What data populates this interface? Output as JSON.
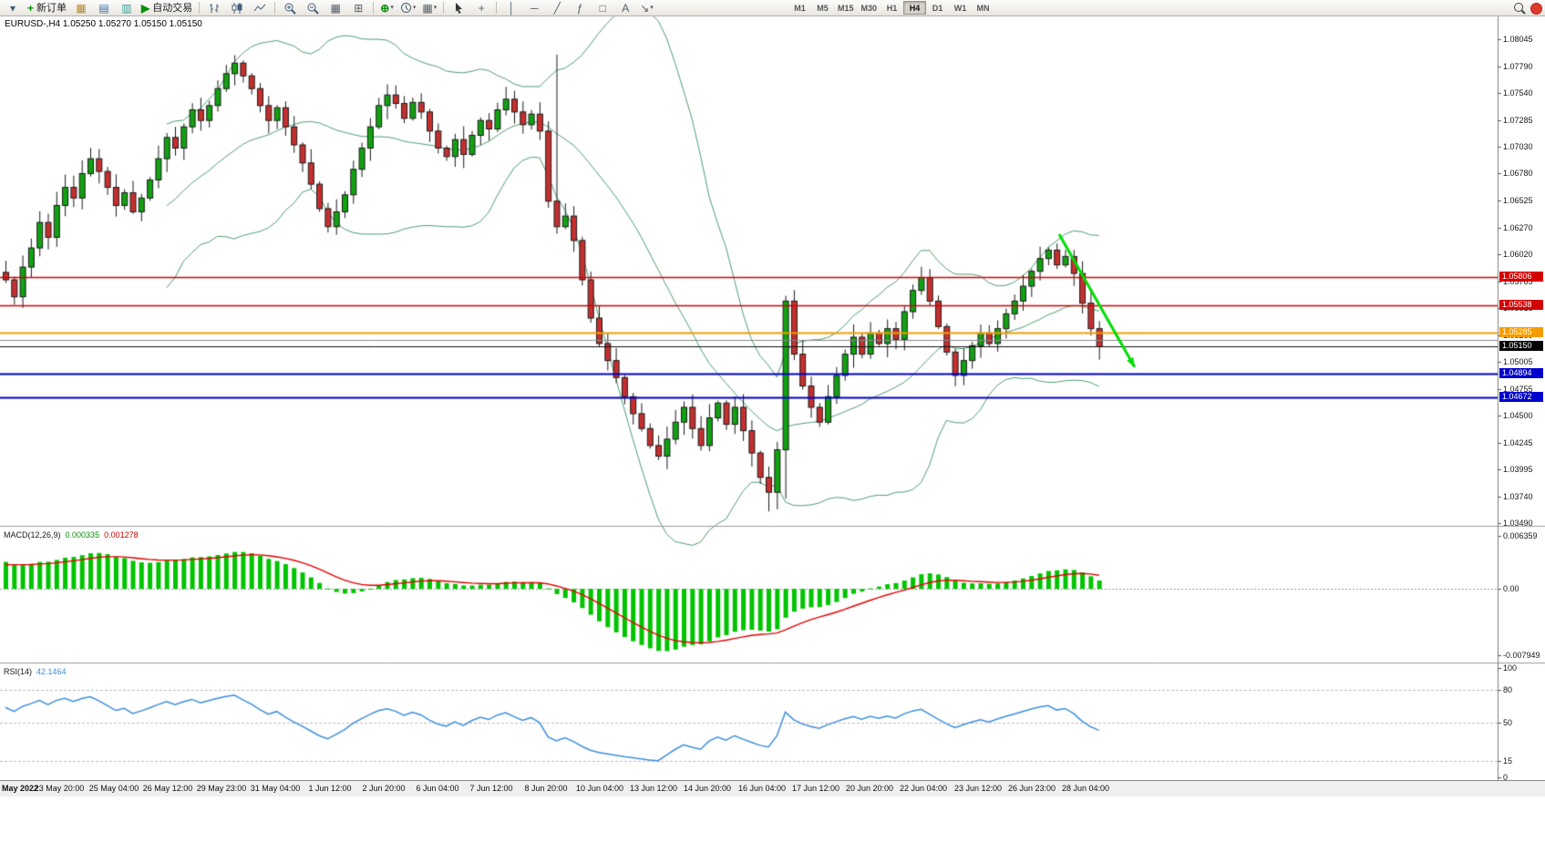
{
  "toolbar": {
    "new_order": "新订单",
    "auto_trading": "自动交易",
    "timeframes": [
      "M1",
      "M5",
      "M15",
      "M30",
      "H1",
      "H4",
      "D1",
      "W1",
      "MN"
    ],
    "active_timeframe": "H4"
  },
  "icons": {
    "dropdown": "▾",
    "plus": "+",
    "chart_window": "▦",
    "market_watch": "▤",
    "navigator": "▥",
    "play": "▶",
    "grid": "▦",
    "tile": "⊞",
    "indicators": "⊕",
    "vline": "│",
    "hline": "─",
    "trendline": "╱",
    "fibo": "ƒ",
    "shapes": "□",
    "text": "A",
    "arrow_tool": "↘",
    "crosshair": "+",
    "caret": "▾"
  },
  "chart": {
    "title": "EURUSD-,H4 1.05250 1.05270 1.05150 1.05150"
  },
  "chart_data": {
    "type": "candlestick",
    "symbol": "EURUSD-",
    "period": "H4",
    "ohlc": {
      "open": 1.0525,
      "high": 1.0527,
      "low": 1.0515,
      "close": 1.0515
    },
    "first_open": 1.0585,
    "closes": [
      1.0578,
      1.0562,
      1.059,
      1.0608,
      1.0632,
      1.0618,
      1.0648,
      1.0665,
      1.0655,
      1.0678,
      1.0692,
      1.068,
      1.0665,
      1.0648,
      1.066,
      1.0642,
      1.0655,
      1.0672,
      1.0692,
      1.0712,
      1.0702,
      1.0722,
      1.0738,
      1.0728,
      1.0742,
      1.0758,
      1.0772,
      1.0782,
      1.077,
      1.0758,
      1.0742,
      1.0728,
      1.074,
      1.0722,
      1.0705,
      1.0688,
      1.0668,
      1.0645,
      1.0628,
      1.0642,
      1.0658,
      1.0682,
      1.0702,
      1.0722,
      1.0742,
      1.0752,
      1.0744,
      1.073,
      1.0745,
      1.0736,
      1.0718,
      1.0702,
      1.0694,
      1.071,
      1.0696,
      1.0714,
      1.0728,
      1.072,
      1.0738,
      1.0748,
      1.0736,
      1.0724,
      1.0734,
      1.0718,
      1.0652,
      1.0628,
      1.0638,
      1.0615,
      1.0578,
      1.0542,
      1.0518,
      1.0502,
      1.0486,
      1.0468,
      1.0452,
      1.0438,
      1.0422,
      1.0412,
      1.0428,
      1.0444,
      1.0458,
      1.0438,
      1.0422,
      1.0448,
      1.0462,
      1.0442,
      1.0458,
      1.0436,
      1.0415,
      1.0392,
      1.0378,
      1.0418,
      1.0558,
      1.0508,
      1.0478,
      1.0458,
      1.0444,
      1.0468,
      1.0488,
      1.0508,
      1.0524,
      1.0508,
      1.0528,
      1.0518,
      1.0532,
      1.0522,
      1.0548,
      1.0568,
      1.058,
      1.0558,
      1.0534,
      1.051,
      1.0488,
      1.0502,
      1.0516,
      1.0528,
      1.0518,
      1.0532,
      1.0546,
      1.0558,
      1.0572,
      1.0586,
      1.0598,
      1.0606,
      1.0592,
      1.06,
      1.0584,
      1.0556,
      1.0532,
      1.0515
    ],
    "wick_overrides": {
      "65": {
        "high": 1.079
      },
      "90": {
        "low": 1.036
      },
      "91": {
        "low": 1.0362
      },
      "92": {
        "low": 1.0372
      }
    },
    "candle_up_color": "#11a211",
    "candle_down_color": "#c62f2f",
    "bollinger": {
      "period": 20,
      "deviation": 2,
      "color": "#4f9d72"
    },
    "price_axis": {
      "ticks": [
        "1.08045",
        "1.07790",
        "1.07540",
        "1.07285",
        "1.07030",
        "1.06780",
        "1.06525",
        "1.06270",
        "1.06020",
        "1.05765",
        "1.05515",
        "1.05260",
        "1.05005",
        "1.04755",
        "1.04500",
        "1.04245",
        "1.03995",
        "1.03740",
        "1.03490"
      ]
    },
    "hlines": [
      {
        "label": "1.05806",
        "value": 1.05806,
        "color": "#d40000",
        "width": 1.4,
        "box": "red"
      },
      {
        "label": "1.05538",
        "value": 1.05538,
        "color": "#d40000",
        "width": 1.4,
        "box": "red"
      },
      {
        "label": "1.05285",
        "value": 1.05285,
        "color": "#f59d00",
        "width": 2,
        "box": "orange"
      },
      {
        "value": 1.0521,
        "color": "#8a8a8a",
        "width": 1
      },
      {
        "label": "1.05150",
        "value": 1.0515,
        "color": "#101010",
        "width": 1,
        "box": "black"
      },
      {
        "label": "1.04894",
        "value": 1.04894,
        "color": "#0000cd",
        "width": 2,
        "box": "blue"
      },
      {
        "label": "1.04672",
        "value": 1.04672,
        "color": "#0000cd",
        "width": 2,
        "box": "blue"
      }
    ],
    "arrow": {
      "from_candle": 124.3,
      "from_price": 1.0621,
      "to_candle": 133.2,
      "to_price": 1.0496,
      "color": "#00dd00"
    },
    "time_labels": [
      "May 2022",
      "23 May 20:00",
      "25 May 04:00",
      "26 May 12:00",
      "29 May 23:00",
      "31 May 04:00",
      "1 Jun 12:00",
      "2 Jun 20:00",
      "6 Jun 04:00",
      "7 Jun 12:00",
      "8 Jun 20:00",
      "10 Jun 04:00",
      "13 Jun 12:00",
      "14 Jun 20:00",
      "16 Jun 04:00",
      "17 Jun 12:00",
      "20 Jun 20:00",
      "22 Jun 04:00",
      "23 Jun 12:00",
      "26 Jun 23:00",
      "28 Jun 04:00"
    ],
    "macd": {
      "label": "MACD(12,26,9)",
      "value_main": "0.000335",
      "value_signal": "0.001278",
      "ticks": [
        "0.006359",
        "0.00",
        "-0.007949"
      ],
      "max": 0.006359,
      "min": -0.007949,
      "histogram_color": "#00c400",
      "signal_color": "#e60000"
    },
    "rsi": {
      "label": "RSI(14)",
      "value": "42.1464",
      "ticks": [
        100,
        80,
        50,
        15,
        0
      ],
      "levels": [
        80,
        50,
        15
      ],
      "color": "#3e8fde"
    }
  }
}
